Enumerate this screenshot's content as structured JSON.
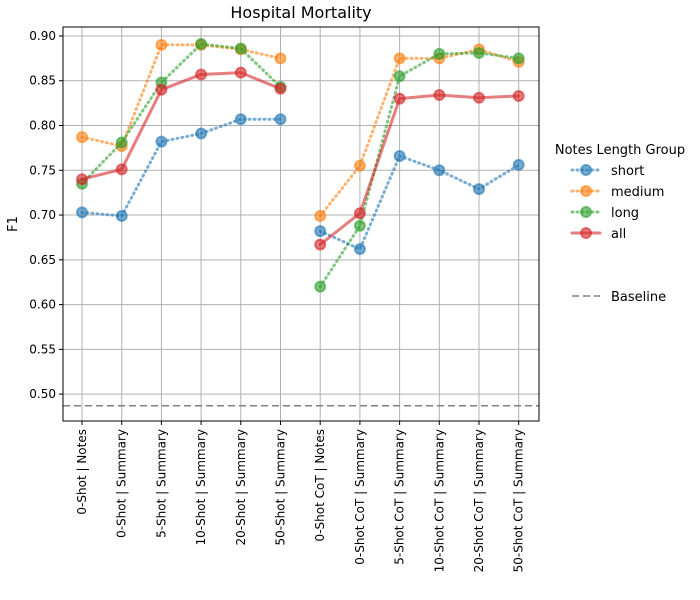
{
  "chart_data": {
    "type": "line",
    "title": "Hospital Mortality",
    "xlabel": "",
    "ylabel": "F1",
    "ylim": [
      0.47,
      0.91
    ],
    "yticks": [
      0.5,
      0.55,
      0.6,
      0.65,
      0.7,
      0.75,
      0.8,
      0.85,
      0.9
    ],
    "ytick_labels": [
      "0.50",
      "0.55",
      "0.60",
      "0.65",
      "0.70",
      "0.75",
      "0.80",
      "0.85",
      "0.90"
    ],
    "grid": true,
    "categories": [
      "0-Shot | Notes",
      "0-Shot | Summary",
      "5-Shot | Summary",
      "10-Shot | Summary",
      "20-Shot | Summary",
      "50-Shot | Summary",
      "0-Shot CoT | Notes",
      "0-Shot CoT | Summary",
      "5-Shot CoT | Summary",
      "10-Shot CoT | Summary",
      "20-Shot CoT | Summary",
      "50-Shot CoT | Summary"
    ],
    "legend": {
      "title": "Notes Length Group",
      "position": "right"
    },
    "series": [
      {
        "name": "short",
        "color": "#1f77b4",
        "style": "dotted",
        "segments": [
          [
            0.703,
            0.699,
            0.782,
            0.791,
            0.807,
            0.807
          ],
          [
            0.682,
            0.662,
            0.766,
            0.75,
            0.729,
            0.756
          ]
        ]
      },
      {
        "name": "medium",
        "color": "#ff7f0e",
        "style": "dotted",
        "segments": [
          [
            0.787,
            0.777,
            0.89,
            0.89,
            0.885,
            0.875
          ],
          [
            0.699,
            0.755,
            0.875,
            0.875,
            0.885,
            0.871
          ]
        ]
      },
      {
        "name": "long",
        "color": "#2ca02c",
        "style": "dotted",
        "segments": [
          [
            0.735,
            0.781,
            0.848,
            0.891,
            0.886,
            0.843
          ],
          [
            0.62,
            0.688,
            0.855,
            0.88,
            0.881,
            0.875
          ]
        ]
      },
      {
        "name": "all",
        "color": "#d62728",
        "style": "solid",
        "segments": [
          [
            0.74,
            0.751,
            0.84,
            0.857,
            0.859,
            0.841
          ],
          [
            0.667,
            0.702,
            0.83,
            0.834,
            0.831,
            0.833
          ]
        ]
      }
    ],
    "baseline": {
      "name": "Baseline",
      "value": 0.487,
      "color": "#808080",
      "style": "dashed"
    }
  }
}
